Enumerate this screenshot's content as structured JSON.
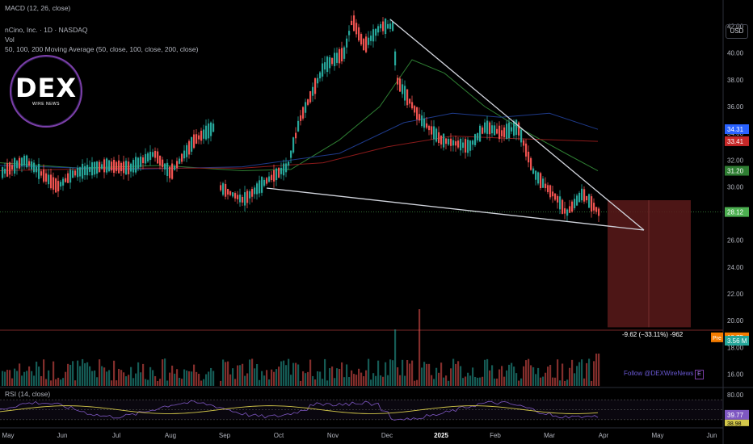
{
  "headers": {
    "macd": "MACD (12, 26, close)",
    "symbol": "nCino, Inc. · 1D · NASDAQ",
    "vol": "Vol",
    "ma": "50, 100, 200 Moving Average (50, close, 100, close, 200, close)",
    "rsi": "RSI (14, close)"
  },
  "currency": "USD",
  "logo": {
    "main": "DEX",
    "sub": "WIRE NEWS"
  },
  "follow_text": "Follow @DEXWireNews",
  "follow_icon": "E",
  "measure_text": "-9.62 (−33.11%) -962",
  "colors": {
    "up": "#26a69a",
    "down": "#ef5350",
    "ma50": "#2e7d32",
    "ma100": "#1e3a8a",
    "ma200": "#8b1a1a",
    "trendline": "#d1d4dc",
    "rsi_line": "#7e57c2",
    "rsi_ma": "#d4c84a",
    "target_box": "#5a1a1a"
  },
  "chart_data": {
    "type": "candlestick",
    "xaxis": [
      "May",
      "Jun",
      "Jul",
      "Aug",
      "Sep",
      "Oct",
      "Nov",
      "Dec",
      "2025",
      "Feb",
      "Mar",
      "Apr",
      "May",
      "Jun"
    ],
    "yaxis_ticks": [
      "42.00",
      "40.00",
      "38.00",
      "36.00",
      "34.00",
      "32.00",
      "30.00",
      "28.00",
      "26.00",
      "24.00",
      "22.00",
      "20.00",
      "18.00",
      "16.00"
    ],
    "ylim": [
      15,
      43
    ],
    "price_labels": [
      {
        "label": "34.31",
        "value": 34.31,
        "color": "#2962ff"
      },
      {
        "label": "33.41",
        "value": 33.41,
        "color": "#c62828"
      },
      {
        "label": "31.20",
        "value": 31.2,
        "color": "#2e7d32"
      },
      {
        "label": "28.12",
        "value": 28.12,
        "color": "#4caf50"
      },
      {
        "label": "18.75",
        "value": 18.75,
        "color": "#f57c00",
        "prefix": "Pre"
      },
      {
        "label": "3.56 M",
        "value": 3.56,
        "color": "#26a69a",
        "pane": "volume"
      }
    ],
    "rsi": {
      "ticks": [
        "80.00",
        "39.77",
        "38.98"
      ],
      "current": 39.77,
      "ma": 38.98,
      "levels": [
        70,
        50,
        30
      ]
    },
    "key_prices": {
      "high": 42.5,
      "low_march": 27.8,
      "last": 28.12,
      "target": 18.75
    }
  }
}
